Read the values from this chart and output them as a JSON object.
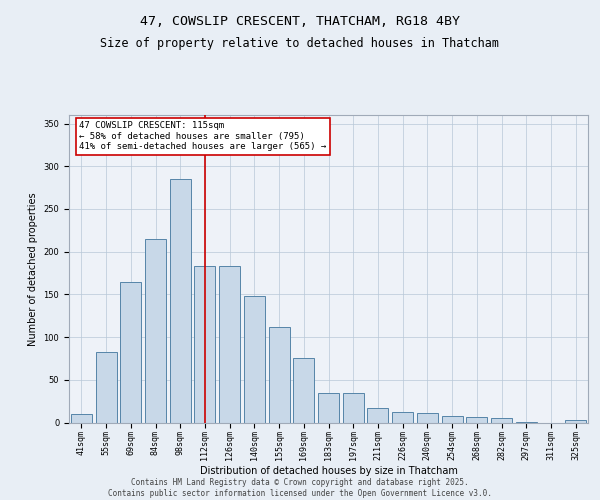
{
  "title": "47, COWSLIP CRESCENT, THATCHAM, RG18 4BY",
  "subtitle": "Size of property relative to detached houses in Thatcham",
  "xlabel": "Distribution of detached houses by size in Thatcham",
  "ylabel": "Number of detached properties",
  "categories": [
    "41sqm",
    "55sqm",
    "69sqm",
    "84sqm",
    "98sqm",
    "112sqm",
    "126sqm",
    "140sqm",
    "155sqm",
    "169sqm",
    "183sqm",
    "197sqm",
    "211sqm",
    "226sqm",
    "240sqm",
    "254sqm",
    "268sqm",
    "282sqm",
    "297sqm",
    "311sqm",
    "325sqm"
  ],
  "values": [
    10,
    83,
    165,
    215,
    285,
    183,
    183,
    148,
    112,
    75,
    35,
    35,
    17,
    12,
    11,
    8,
    6,
    5,
    1,
    0,
    3
  ],
  "bar_color": "#c8d8e8",
  "bar_edge_color": "#5585a8",
  "vline_color": "#cc0000",
  "annotation_text": "47 COWSLIP CRESCENT: 115sqm\n← 58% of detached houses are smaller (795)\n41% of semi-detached houses are larger (565) →",
  "annotation_box_color": "#ffffff",
  "annotation_box_edge": "#cc0000",
  "ylim": [
    0,
    360
  ],
  "yticks": [
    0,
    50,
    100,
    150,
    200,
    250,
    300,
    350
  ],
  "bg_color": "#e8eef5",
  "plot_bg_color": "#eef2f8",
  "footer_text": "Contains HM Land Registry data © Crown copyright and database right 2025.\nContains public sector information licensed under the Open Government Licence v3.0.",
  "title_fontsize": 9.5,
  "subtitle_fontsize": 8.5,
  "axis_label_fontsize": 7,
  "tick_fontsize": 6,
  "annotation_fontsize": 6.5,
  "footer_fontsize": 5.5,
  "ylabel_fontsize": 7
}
